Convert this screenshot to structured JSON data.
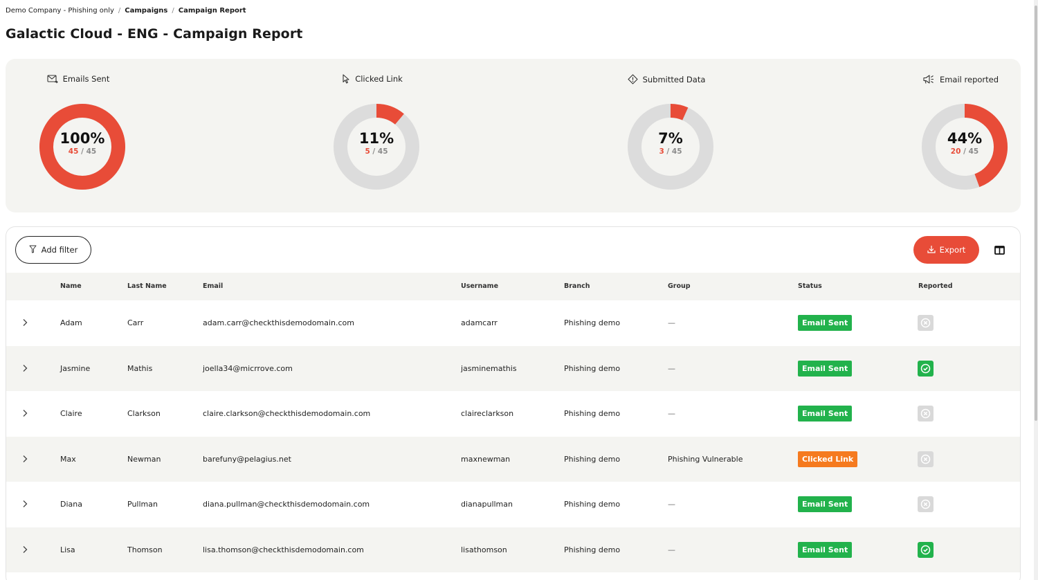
{
  "breadcrumb": [
    {
      "label": "Demo Company - Phishing only",
      "bold": false
    },
    {
      "label": "Campaigns",
      "bold": true
    },
    {
      "label": "Campaign Report",
      "bold": true
    }
  ],
  "breadcrumb_separator": "/",
  "page_title": "Galactic Cloud - ENG - Campaign Report",
  "colors": {
    "accent": "#e84c38",
    "track": "#dcdcdc",
    "panel": "#f4f4f1",
    "status_sent": "#22b24c",
    "status_clicked": "#f57a1f",
    "reported_yes": "#22b24c",
    "reported_no": "#d9d9d9"
  },
  "stats": [
    {
      "label": "Emails Sent",
      "icon": "email-sent-icon",
      "percent_label": "100%",
      "count": "45",
      "total": "45",
      "fraction": 1.0
    },
    {
      "label": "Clicked Link",
      "icon": "cursor-icon",
      "percent_label": "11%",
      "count": "5",
      "total": "45",
      "fraction": 0.111
    },
    {
      "label": "Submitted Data",
      "icon": "alert-diamond-icon",
      "percent_label": "7%",
      "count": "3",
      "total": "45",
      "fraction": 0.067
    },
    {
      "label": "Email reported",
      "icon": "megaphone-icon",
      "percent_label": "44%",
      "count": "20",
      "total": "45",
      "fraction": 0.444
    }
  ],
  "fraction_separator": "/",
  "toolbar": {
    "add_filter_label": "Add filter",
    "export_label": "Export",
    "filter_icon": "filter-icon",
    "export_icon": "download-icon",
    "columns_icon": "columns-icon"
  },
  "table": {
    "columns": [
      "Name",
      "Last Name",
      "Email",
      "Username",
      "Branch",
      "Group",
      "Status",
      "Reported"
    ],
    "rows": [
      {
        "name": "Adam",
        "last_name": "Carr",
        "email": "adam.carr@checkthisdemodomain.com",
        "username": "adamcarr",
        "branch": "Phishing demo",
        "group": "—",
        "status": "Email Sent",
        "status_type": "sent",
        "reported": false
      },
      {
        "name": "Jasmine",
        "last_name": "Mathis",
        "email": "joella34@micrrove.com",
        "username": "jasminemathis",
        "branch": "Phishing demo",
        "group": "—",
        "status": "Email Sent",
        "status_type": "sent",
        "reported": true
      },
      {
        "name": "Claire",
        "last_name": "Clarkson",
        "email": "claire.clarkson@checkthisdemodomain.com",
        "username": "claireclarkson",
        "branch": "Phishing demo",
        "group": "—",
        "status": "Email Sent",
        "status_type": "sent",
        "reported": false
      },
      {
        "name": "Max",
        "last_name": "Newman",
        "email": "barefuny@pelagius.net",
        "username": "maxnewman",
        "branch": "Phishing demo",
        "group": "Phishing Vulnerable",
        "status": "Clicked Link",
        "status_type": "clicked",
        "reported": false
      },
      {
        "name": "Diana",
        "last_name": "Pullman",
        "email": "diana.pullman@checkthisdemodomain.com",
        "username": "dianapullman",
        "branch": "Phishing demo",
        "group": "—",
        "status": "Email Sent",
        "status_type": "sent",
        "reported": false
      },
      {
        "name": "Lisa",
        "last_name": "Thomson",
        "email": "lisa.thomson@checkthisdemodomain.com",
        "username": "lisathomson",
        "branch": "Phishing demo",
        "group": "—",
        "status": "Email Sent",
        "status_type": "sent",
        "reported": true
      }
    ]
  }
}
